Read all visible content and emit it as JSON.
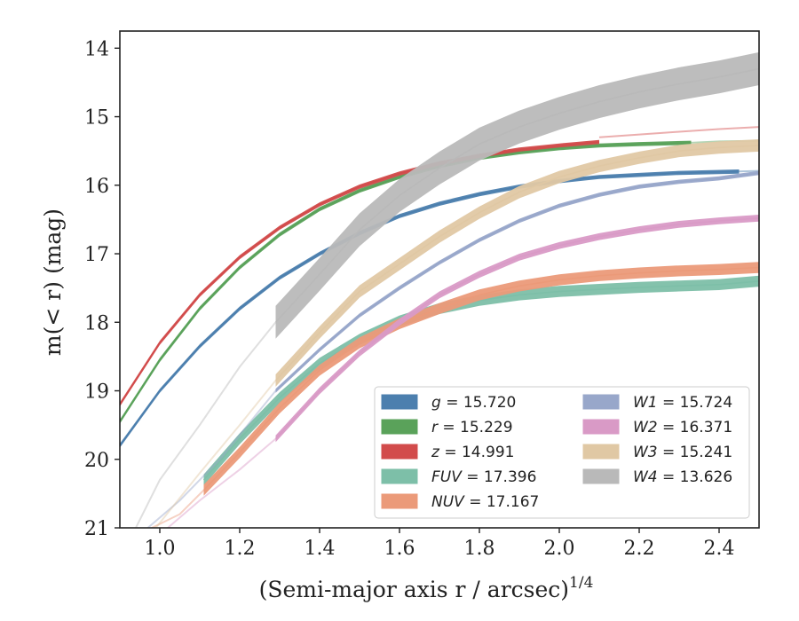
{
  "chart_data": {
    "type": "line",
    "xlabel": "(Semi-major axis r / arcsec)",
    "xlabel_exponent": "1/4",
    "ylabel": "m(< r) (mag)",
    "xlim": [
      0.9,
      2.5
    ],
    "ylim": [
      21,
      13.75
    ],
    "y_inverted": true,
    "x_ticks": [
      1.0,
      1.2,
      1.4,
      1.6,
      1.8,
      2.0,
      2.2,
      2.4
    ],
    "x_tick_labels": [
      "1.0",
      "1.2",
      "1.4",
      "1.6",
      "1.8",
      "2.0",
      "2.2",
      "2.4"
    ],
    "y_ticks": [
      14,
      15,
      16,
      17,
      18,
      19,
      20,
      21
    ],
    "y_tick_labels": [
      "14",
      "15",
      "16",
      "17",
      "18",
      "19",
      "20",
      "21"
    ],
    "grid": false,
    "legend_placement": "lower-right",
    "legend_columns": 2,
    "series": [
      {
        "name": "g = 15.720",
        "band": "g",
        "mag": "15.720",
        "color": "#4c7fae",
        "band_halfwidth": 0.03,
        "x": [
          0.9,
          1.0,
          1.1,
          1.2,
          1.3,
          1.4,
          1.5,
          1.6,
          1.7,
          1.8,
          1.9,
          2.0,
          2.1,
          2.2,
          2.3,
          2.45
        ],
        "y": [
          19.8,
          19.0,
          18.35,
          17.8,
          17.35,
          17.0,
          16.7,
          16.45,
          16.27,
          16.13,
          16.02,
          15.94,
          15.88,
          15.85,
          15.82,
          15.8
        ],
        "faint_x": [
          2.45,
          2.5
        ],
        "faint_y": [
          15.8,
          15.79
        ]
      },
      {
        "name": "r = 15.229",
        "band": "r",
        "mag": "15.229",
        "color": "#5aa25a",
        "band_halfwidth": 0.03,
        "x": [
          0.9,
          1.0,
          1.1,
          1.2,
          1.3,
          1.4,
          1.5,
          1.6,
          1.7,
          1.8,
          1.9,
          2.0,
          2.1,
          2.2,
          2.33
        ],
        "y": [
          19.45,
          18.55,
          17.8,
          17.2,
          16.72,
          16.35,
          16.08,
          15.88,
          15.72,
          15.6,
          15.52,
          15.46,
          15.42,
          15.4,
          15.38
        ],
        "faint_x": [
          2.33,
          2.4,
          2.5
        ],
        "faint_y": [
          15.38,
          15.36,
          15.35
        ]
      },
      {
        "name": "z = 14.991",
        "band": "z",
        "mag": "14.991",
        "color": "#d24b4b",
        "band_halfwidth": 0.03,
        "x": [
          0.9,
          1.0,
          1.1,
          1.2,
          1.3,
          1.4,
          1.5,
          1.6,
          1.7,
          1.8,
          1.9,
          2.0,
          2.1
        ],
        "y": [
          19.2,
          18.3,
          17.6,
          17.05,
          16.62,
          16.28,
          16.02,
          15.83,
          15.68,
          15.57,
          15.48,
          15.42,
          15.37
        ],
        "faint_x": [
          2.1,
          2.2,
          2.3,
          2.4,
          2.5
        ],
        "faint_y": [
          15.3,
          15.26,
          15.22,
          15.18,
          15.15
        ]
      },
      {
        "name": "FUV = 17.396",
        "band": "FUV",
        "mag": "17.396",
        "color": "#7dbfa8",
        "band_halfwidth": 0.08,
        "x": [
          1.11,
          1.2,
          1.3,
          1.4,
          1.5,
          1.6,
          1.7,
          1.8,
          1.9,
          2.0,
          2.1,
          2.2,
          2.3,
          2.4,
          2.5
        ],
        "y": [
          20.3,
          19.7,
          19.1,
          18.6,
          18.25,
          17.98,
          17.8,
          17.68,
          17.6,
          17.55,
          17.52,
          17.49,
          17.47,
          17.45,
          17.4
        ],
        "faint_x": [],
        "faint_y": []
      },
      {
        "name": "NUV = 17.167",
        "band": "NUV",
        "mag": "17.167",
        "color": "#eb9a79",
        "band_halfwidth": 0.08,
        "x": [
          1.11,
          1.2,
          1.3,
          1.4,
          1.5,
          1.6,
          1.7,
          1.8,
          1.9,
          2.0,
          2.1,
          2.2,
          2.3,
          2.4,
          2.5
        ],
        "y": [
          20.45,
          19.9,
          19.25,
          18.7,
          18.3,
          18.02,
          17.8,
          17.6,
          17.47,
          17.38,
          17.32,
          17.28,
          17.25,
          17.23,
          17.2
        ],
        "faint_x": [
          0.98,
          1.05,
          1.11
        ],
        "faint_y": [
          21.0,
          20.8,
          20.45
        ]
      },
      {
        "name": "W1 = 15.724",
        "band": "W1",
        "mag": "15.724",
        "color": "#98a7ca",
        "band_halfwidth": 0.03,
        "x": [
          1.29,
          1.4,
          1.5,
          1.6,
          1.7,
          1.8,
          1.9,
          2.0,
          2.1,
          2.2,
          2.3,
          2.4,
          2.5
        ],
        "y": [
          19.0,
          18.4,
          17.9,
          17.5,
          17.13,
          16.8,
          16.52,
          16.3,
          16.14,
          16.02,
          15.95,
          15.9,
          15.82
        ],
        "faint_x": [
          0.97,
          1.05,
          1.15,
          1.22,
          1.29
        ],
        "faint_y": [
          21.0,
          20.6,
          20.0,
          19.5,
          19.0
        ]
      },
      {
        "name": "W2 = 16.371",
        "band": "W2",
        "mag": "16.371",
        "color": "#d99ac6",
        "band_halfwidth": 0.05,
        "x": [
          1.29,
          1.4,
          1.5,
          1.6,
          1.7,
          1.8,
          1.9,
          2.0,
          2.1,
          2.2,
          2.3,
          2.4,
          2.5
        ],
        "y": [
          19.7,
          19.0,
          18.45,
          18.0,
          17.6,
          17.3,
          17.05,
          16.88,
          16.75,
          16.65,
          16.57,
          16.52,
          16.48
        ],
        "faint_x": [
          1.02,
          1.1,
          1.2,
          1.29
        ],
        "faint_y": [
          21.0,
          20.6,
          20.15,
          19.7
        ]
      },
      {
        "name": "W3 = 15.241",
        "band": "W3",
        "mag": "15.241",
        "color": "#e0c8a4",
        "band_halfwidth": 0.09,
        "x": [
          1.29,
          1.4,
          1.5,
          1.6,
          1.7,
          1.8,
          1.9,
          2.0,
          2.1,
          2.2,
          2.3,
          2.4,
          2.5
        ],
        "y": [
          18.85,
          18.15,
          17.55,
          17.15,
          16.75,
          16.4,
          16.1,
          15.88,
          15.72,
          15.6,
          15.5,
          15.45,
          15.42
        ],
        "faint_x": [
          0.99,
          1.1,
          1.2,
          1.29
        ],
        "faint_y": [
          21.0,
          20.2,
          19.5,
          18.85
        ]
      },
      {
        "name": "W4 = 13.626",
        "band": "W4",
        "mag": "13.626",
        "color": "#b9b9b9",
        "band_halfwidth": 0.24,
        "x": [
          1.29,
          1.4,
          1.5,
          1.6,
          1.7,
          1.8,
          1.9,
          2.0,
          2.1,
          2.2,
          2.3,
          2.4,
          2.5
        ],
        "y": [
          18.0,
          17.3,
          16.65,
          16.15,
          15.75,
          15.4,
          15.15,
          14.95,
          14.78,
          14.64,
          14.52,
          14.42,
          14.3
        ],
        "faint_x": [
          0.94,
          1.0,
          1.1,
          1.2,
          1.29
        ],
        "faint_y": [
          21.0,
          20.3,
          19.5,
          18.65,
          18.0
        ]
      }
    ]
  }
}
